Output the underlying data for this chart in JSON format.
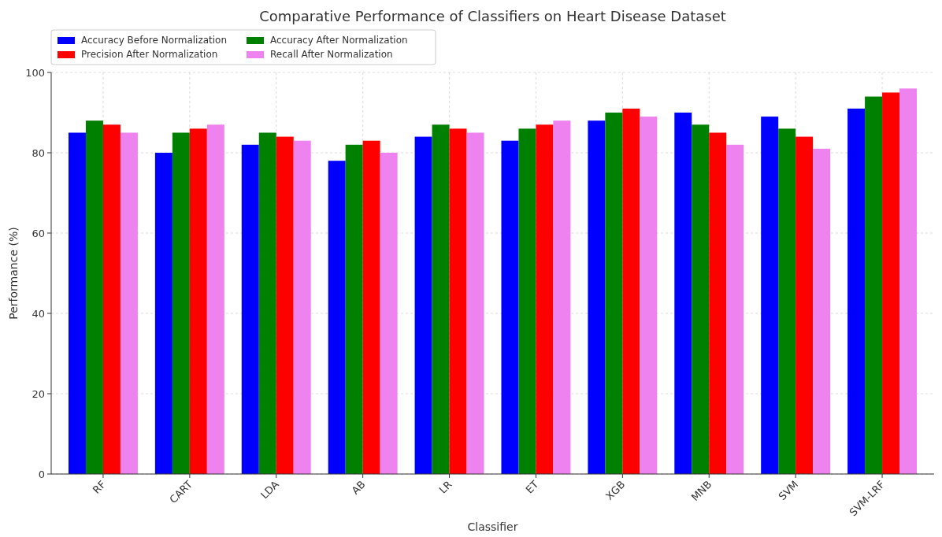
{
  "chart_data": {
    "type": "bar",
    "title": "Comparative Performance of Classifiers on Heart Disease Dataset",
    "xlabel": "Classifier",
    "ylabel": "Performance (%)",
    "categories": [
      "RF",
      "CART",
      "LDA",
      "AB",
      "LR",
      "ET",
      "XGB",
      "MNB",
      "SVM",
      "SVM-LRF"
    ],
    "series": [
      {
        "name": "Accuracy Before Normalization",
        "color": "#0000ff",
        "values": [
          85,
          80,
          82,
          78,
          84,
          83,
          88,
          90,
          89,
          91
        ]
      },
      {
        "name": "Accuracy After Normalization",
        "color": "#008000",
        "values": [
          88,
          85,
          85,
          82,
          87,
          86,
          90,
          87,
          86,
          94
        ]
      },
      {
        "name": "Precision After Normalization",
        "color": "#ff0000",
        "values": [
          87,
          86,
          84,
          83,
          86,
          87,
          91,
          85,
          84,
          95
        ]
      },
      {
        "name": "Recall After Normalization",
        "color": "#ee82ee",
        "values": [
          85,
          87,
          83,
          80,
          85,
          88,
          89,
          82,
          81,
          96
        ]
      }
    ],
    "ylim": [
      0,
      100
    ],
    "yticks": [
      0,
      20,
      40,
      60,
      80,
      100
    ],
    "grid": true,
    "legend": "top left"
  }
}
